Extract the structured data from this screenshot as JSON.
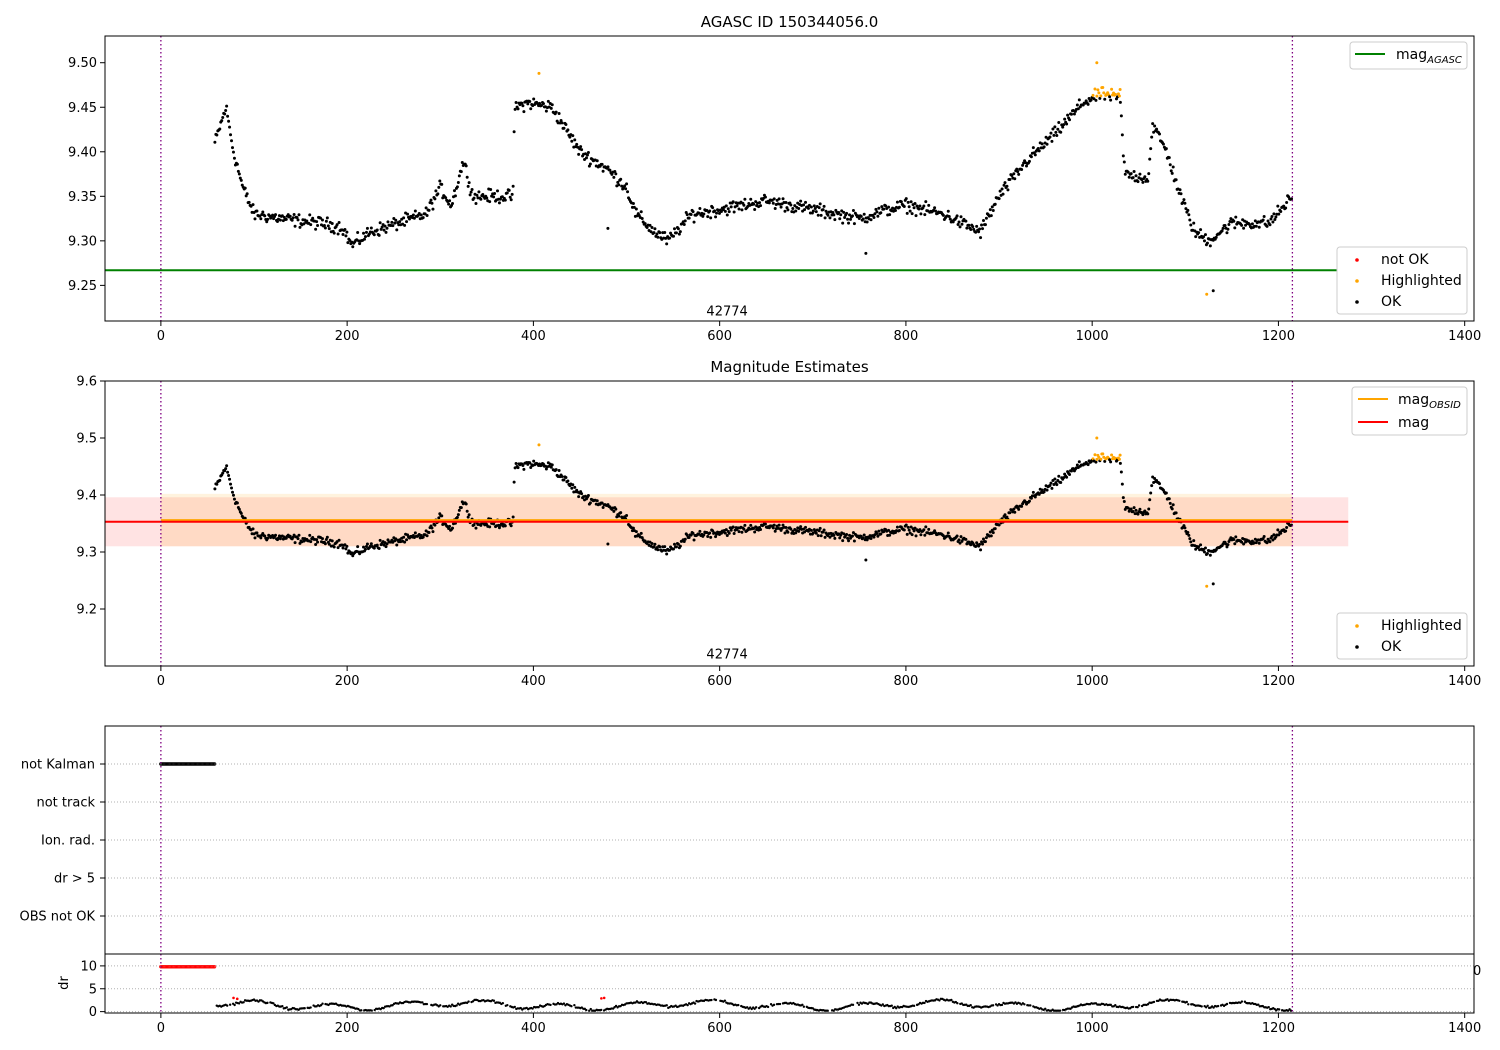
{
  "chart_data": [
    {
      "type": "scatter",
      "title": "AGASC ID 150344056.0",
      "xlim": [
        -60,
        1410
      ],
      "ylim": [
        9.21,
        9.53
      ],
      "x_ticks": [
        0,
        200,
        400,
        600,
        800,
        1000,
        1200,
        1400
      ],
      "y_ticks": [
        9.25,
        9.3,
        9.35,
        9.4,
        9.45,
        9.5
      ],
      "y_tick_labels": [
        "9.25",
        "9.30",
        "9.35",
        "9.40",
        "9.45",
        "9.50"
      ],
      "hlines": [
        {
          "name": "mag_AGASC",
          "y": 9.267,
          "x_range": [
            -60,
            1275
          ],
          "color": "#008000"
        }
      ],
      "vlines": [
        0,
        1215
      ],
      "annotation": {
        "text": "42774",
        "x": 608,
        "y": 9.216
      },
      "legend_top": [
        {
          "label": "mag",
          "sub": "AGASC",
          "color": "#008000"
        }
      ],
      "legend_bottom": [
        {
          "label": "not OK",
          "color": "#ff0000"
        },
        {
          "label": "Highlighted",
          "color": "#ffa500"
        },
        {
          "label": "OK",
          "color": "#000000"
        }
      ]
    },
    {
      "type": "scatter",
      "title": "Magnitude Estimates",
      "xlim": [
        -60,
        1410
      ],
      "ylim": [
        9.1,
        9.6
      ],
      "x_ticks": [
        0,
        200,
        400,
        600,
        800,
        1000,
        1200,
        1400
      ],
      "y_ticks": [
        9.2,
        9.3,
        9.4,
        9.5,
        9.6
      ],
      "y_tick_labels": [
        "9.2",
        "9.3",
        "9.4",
        "9.5",
        "9.6"
      ],
      "hlines": [
        {
          "name": "mag_OBSID",
          "y": 9.356,
          "x_range": [
            0,
            1215
          ],
          "color": "#ffa500"
        },
        {
          "name": "mag",
          "y": 9.353,
          "x_range": [
            -60,
            1275
          ],
          "color": "#ff0000"
        }
      ],
      "bands": [
        {
          "name": "mag-band",
          "y0": 9.31,
          "y1": 9.396,
          "x_range": [
            -60,
            1275
          ],
          "color": "#ff0000",
          "opacity": 0.11
        },
        {
          "name": "mag-obsid-band",
          "y0": 9.31,
          "y1": 9.402,
          "x_range": [
            0,
            1215
          ],
          "color": "#ffa500",
          "opacity": 0.13
        }
      ],
      "vlines": [
        0,
        1215
      ],
      "annotation": {
        "text": "42774",
        "x": 608,
        "y": 9.113
      },
      "legend_top": [
        {
          "label": "mag",
          "sub": "OBSID",
          "color": "#ffa500"
        },
        {
          "label": "mag",
          "sub": "",
          "color": "#ff0000"
        }
      ],
      "legend_bottom": [
        {
          "label": "Highlighted",
          "color": "#ffa500"
        },
        {
          "label": "OK",
          "color": "#000000"
        }
      ]
    },
    {
      "type": "scatter",
      "title": "",
      "xlim": [
        -60,
        1410
      ],
      "x_ticks": [
        0,
        200,
        400,
        600,
        800,
        1000,
        1200,
        1400
      ],
      "flag_rows": [
        "not Kalman",
        "not track",
        "Ion. rad.",
        "dr > 5",
        "OBS not OK"
      ],
      "flag_segments": [
        {
          "row": "not Kalman",
          "x_range": [
            0,
            58
          ]
        }
      ],
      "vlines": [
        0,
        1215
      ],
      "dr": {
        "ylabel": "dr",
        "ylim": [
          -0.3,
          12.6
        ],
        "y_ticks": [
          0,
          5,
          10
        ],
        "y_tick_labels": [
          "0",
          "5",
          "10"
        ],
        "extra_tick_label": "0",
        "red_segment": {
          "x_range": [
            0,
            58
          ],
          "y": 9.8
        },
        "red_points": [
          [
            78,
            3.0
          ],
          [
            82,
            2.8
          ],
          [
            473,
            2.9
          ],
          [
            476,
            3.0
          ]
        ]
      }
    }
  ]
}
